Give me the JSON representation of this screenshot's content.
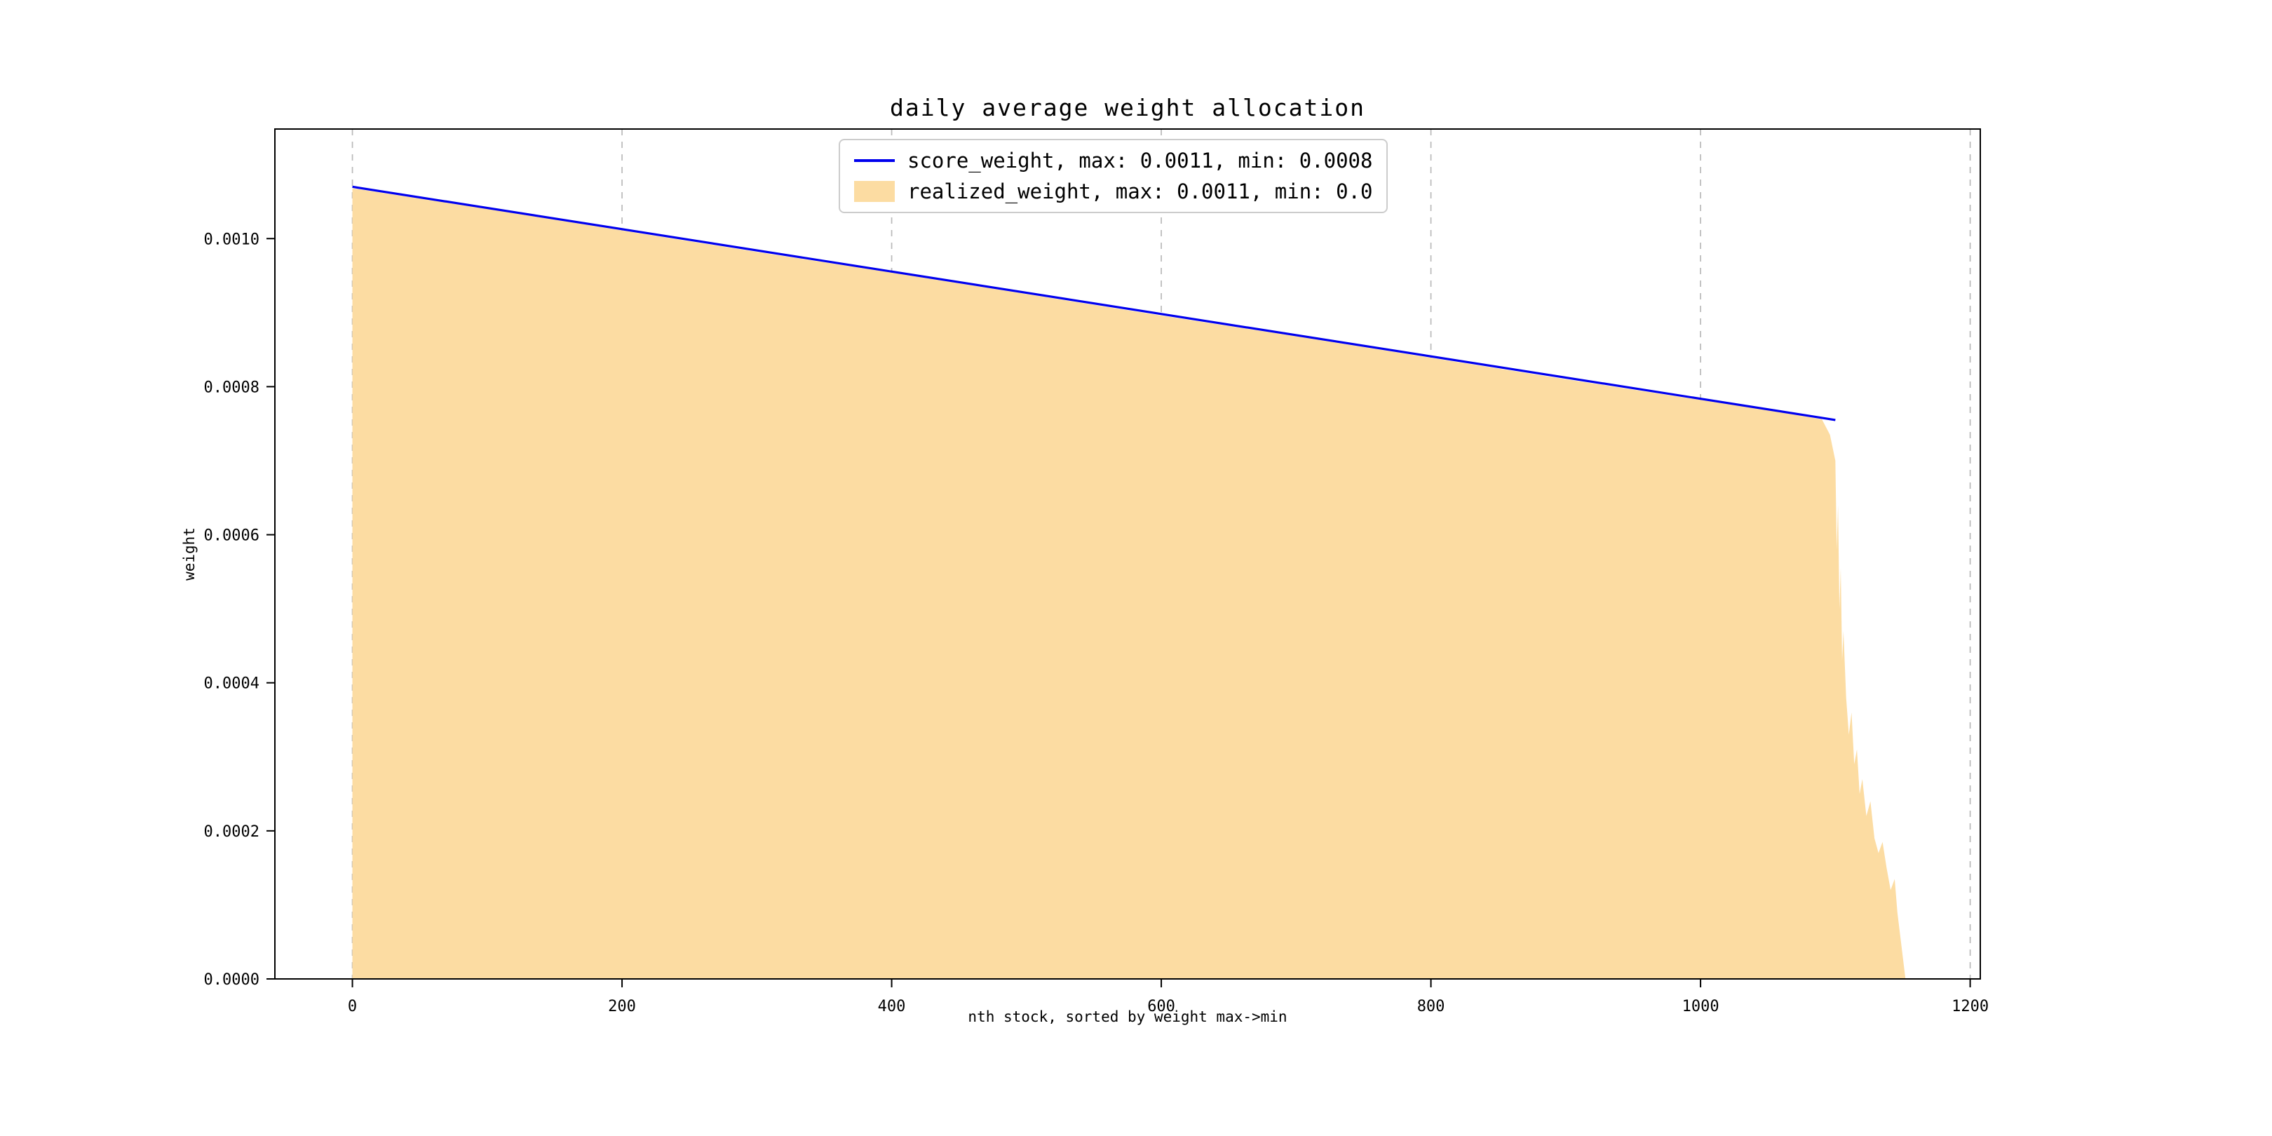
{
  "chart_data": {
    "type": "area",
    "title": "daily average weight allocation",
    "xlabel": "nth stock, sorted by weight max->min",
    "ylabel": "weight",
    "xlim": [
      -57.5,
      1207.5
    ],
    "ylim": [
      0,
      0.001148
    ],
    "grid": "vertical-dashed",
    "legend_position": "upper center",
    "x_ticks": [
      0,
      200,
      400,
      600,
      800,
      1000,
      1200
    ],
    "x_tick_labels": [
      "0",
      "200",
      "400",
      "600",
      "800",
      "1000",
      "1200"
    ],
    "y_ticks": [
      0.0,
      0.0002,
      0.0004,
      0.0006,
      0.0008,
      0.001
    ],
    "y_tick_labels": [
      "0.0000",
      "0.0002",
      "0.0004",
      "0.0006",
      "0.0008",
      "0.0010"
    ],
    "series": [
      {
        "name": "score_weight",
        "label": "score_weight, max: 0.0011, min: 0.0008",
        "type": "line",
        "color": "#0000ee",
        "max": 0.0011,
        "min": 0.0008,
        "points": [
          [
            0,
            0.00107
          ],
          [
            1100,
            0.000755
          ]
        ]
      },
      {
        "name": "realized_weight",
        "label": "realized_weight, max: 0.0011, min: 0.0",
        "type": "area",
        "color": "#fcdca2",
        "max": 0.0011,
        "min": 0.0,
        "points": [
          [
            0,
            0.001068
          ],
          [
            100,
            0.00104
          ],
          [
            200,
            0.001011
          ],
          [
            300,
            0.000982
          ],
          [
            400,
            0.000954
          ],
          [
            500,
            0.000925
          ],
          [
            600,
            0.000896
          ],
          [
            700,
            0.000868
          ],
          [
            800,
            0.000839
          ],
          [
            900,
            0.00081
          ],
          [
            1000,
            0.000782
          ],
          [
            1050,
            0.000768
          ],
          [
            1090,
            0.000756
          ],
          [
            1096,
            0.000735
          ],
          [
            1100,
            0.0007
          ],
          [
            1101,
            0.00058
          ],
          [
            1102,
            0.00064
          ],
          [
            1103,
            0.0005
          ],
          [
            1104,
            0.000555
          ],
          [
            1105,
            0.00043
          ],
          [
            1106,
            0.00047
          ],
          [
            1108,
            0.00038
          ],
          [
            1110,
            0.00033
          ],
          [
            1112,
            0.00036
          ],
          [
            1114,
            0.00029
          ],
          [
            1116,
            0.00031
          ],
          [
            1118,
            0.00025
          ],
          [
            1120,
            0.00027
          ],
          [
            1123,
            0.00022
          ],
          [
            1126,
            0.00024
          ],
          [
            1129,
            0.00019
          ],
          [
            1132,
            0.00017
          ],
          [
            1135,
            0.000185
          ],
          [
            1138,
            0.00015
          ],
          [
            1141,
            0.00012
          ],
          [
            1144,
            0.000135
          ],
          [
            1146,
            9e-05
          ],
          [
            1148,
            6e-05
          ],
          [
            1150,
            3e-05
          ],
          [
            1152,
            0.0
          ]
        ]
      }
    ]
  }
}
